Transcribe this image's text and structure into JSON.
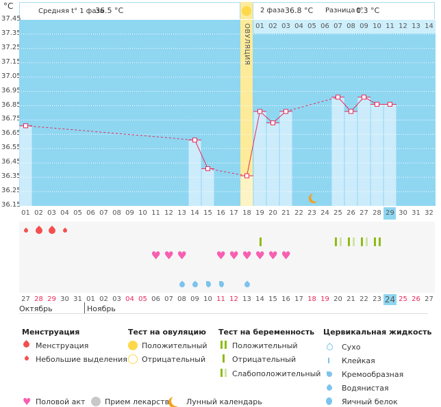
{
  "unit_label": "°C",
  "header": {
    "phase1_label": "Средняя t° 1 фаза",
    "phase1_value": "36.5 °C",
    "phase2_label": "2 фаза",
    "phase2_value": "36.8 °C",
    "diff_label": "Разница t°",
    "diff_value": "0.3 °C"
  },
  "ovulation_label": "ОВУЛЯЦИЯ",
  "colors": {
    "plot_bg": "#8fd6f1",
    "bar": "#ccecfb",
    "ovulation": "#fdeb9a",
    "line": "#e8285a",
    "today": "#8fd6f1"
  },
  "chart_data": {
    "type": "line",
    "ylim": [
      36.15,
      37.45
    ],
    "yticks": [
      "37.45",
      "37.35",
      "37.25",
      "37.15",
      "37.05",
      "36.95",
      "36.85",
      "36.75",
      "36.65",
      "36.55",
      "36.45",
      "36.35",
      "36.25",
      "36.15"
    ],
    "cycle_days": [
      "01",
      "02",
      "03",
      "04",
      "05",
      "06",
      "07",
      "08",
      "09",
      "10",
      "11",
      "12",
      "13",
      "14",
      "15",
      "16",
      "17",
      "18",
      "19",
      "20",
      "21",
      "22",
      "23",
      "24",
      "25",
      "26",
      "27",
      "28",
      "29",
      "30",
      "31",
      "32"
    ],
    "points": [
      {
        "day": 1,
        "temp": 36.71
      },
      {
        "day": 14,
        "temp": 36.61
      },
      {
        "day": 15,
        "temp": 36.41
      },
      {
        "day": 18,
        "temp": 36.36
      },
      {
        "day": 19,
        "temp": 36.81
      },
      {
        "day": 20,
        "temp": 36.73
      },
      {
        "day": 21,
        "temp": 36.81
      },
      {
        "day": 25,
        "temp": 36.91
      },
      {
        "day": 26,
        "temp": 36.81
      },
      {
        "day": 27,
        "temp": 36.91
      },
      {
        "day": 28,
        "temp": 36.86
      },
      {
        "day": 29,
        "temp": 36.86
      }
    ],
    "ovulation_day": 18,
    "current_day": 29,
    "phase2_days": [
      "01",
      "02",
      "03",
      "04",
      "05",
      "06",
      "07",
      "08",
      "09",
      "10",
      "11",
      "12",
      "13",
      "14"
    ],
    "moon_day": 23
  },
  "calendar": {
    "dates": [
      "27",
      "28",
      "29",
      "30",
      "31",
      "01",
      "02",
      "03",
      "04",
      "05",
      "06",
      "07",
      "08",
      "09",
      "10",
      "11",
      "12",
      "13",
      "14",
      "15",
      "16",
      "17",
      "18",
      "19",
      "20",
      "21",
      "22",
      "23",
      "24",
      "25",
      "26",
      "27"
    ],
    "weekend_cols": [
      2,
      3,
      9,
      10,
      16,
      17,
      23,
      24,
      30,
      31
    ],
    "months": [
      "Октябрь",
      "Ноябрь"
    ]
  },
  "symbols": {
    "menstruation": [
      {
        "col": 1,
        "size": "small"
      },
      {
        "col": 2,
        "size": "big"
      },
      {
        "col": 3,
        "size": "big"
      },
      {
        "col": 4,
        "size": "small"
      }
    ],
    "pregnancy_tests": [
      {
        "col": 19,
        "result": "negative"
      },
      {
        "col": 25,
        "result": "weak"
      },
      {
        "col": 26,
        "result": "weak"
      },
      {
        "col": 27,
        "result": "weak"
      },
      {
        "col": 28,
        "result": "positive"
      }
    ],
    "intercourse": [
      11,
      12,
      13,
      16,
      17,
      18,
      19,
      20,
      21
    ],
    "cervical": [
      {
        "col": 13,
        "type": "watery"
      },
      {
        "col": 14,
        "type": "watery"
      },
      {
        "col": 15,
        "type": "creamy"
      },
      {
        "col": 16,
        "type": "creamy"
      },
      {
        "col": 18,
        "type": "watery"
      }
    ]
  },
  "legend": {
    "menstruation": {
      "title": "Менструация",
      "items": [
        "Менструация",
        "Небольшие выделения"
      ]
    },
    "ovulation_test": {
      "title": "Тест на овуляцию",
      "items": [
        "Положительный",
        "Отрицательный"
      ]
    },
    "pregnancy_test": {
      "title": "Тест на беременность",
      "items": [
        "Положительный",
        "Отрицательный",
        "Слабоположительный"
      ]
    },
    "cervical": {
      "title": "Цервикальная жидкость",
      "items": [
        "Сухо",
        "Клейкая",
        "Кремообразная",
        "Водянистая",
        "Яичный белок"
      ]
    },
    "other": [
      "Половой акт",
      "Прием лекарств",
      "Лунный календарь"
    ]
  }
}
